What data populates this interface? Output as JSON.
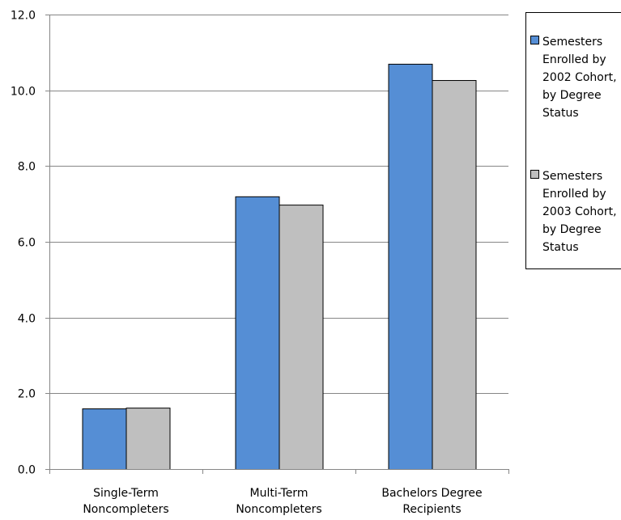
{
  "chart_data": {
    "type": "bar",
    "title": "",
    "xlabel": "",
    "ylabel": "",
    "categories": [
      [
        "Single-Term",
        "Noncompleters"
      ],
      [
        "Multi-Term",
        "Noncompleters"
      ],
      [
        "Bachelors Degree",
        "Recipients"
      ]
    ],
    "series": [
      {
        "name": "Semesters Enrolled by 2002 Cohort, by Degree Status",
        "legend_lines": [
          "Semesters",
          "Enrolled by",
          "2002 Cohort,",
          "by Degree",
          "Status"
        ],
        "color": "#558ed5",
        "values": [
          1.6,
          7.2,
          10.7
        ]
      },
      {
        "name": "Semesters Enrolled by 2003 Cohort, by Degree Status",
        "legend_lines": [
          "Semesters",
          "Enrolled by",
          "2003 Cohort,",
          "by Degree",
          "Status"
        ],
        "color": "#bfbfbf",
        "values": [
          1.62,
          6.98,
          10.27
        ]
      }
    ],
    "ylim": [
      0,
      12
    ],
    "yticks": [
      0,
      2,
      4,
      6,
      8,
      10,
      12
    ],
    "ytick_labels": [
      "0.0",
      "2.0",
      "4.0",
      "6.0",
      "8.0",
      "10.0",
      "12.0"
    ],
    "grid": true,
    "legend_position": "right"
  }
}
